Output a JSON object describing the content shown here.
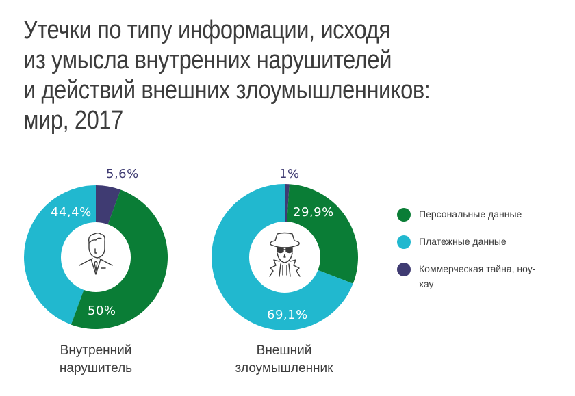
{
  "title": {
    "lines": [
      "Утечки по типу информации, исходя",
      "из умысла внутренних нарушителей",
      "и действий внешних злоумышленников:",
      "мир, 2017"
    ]
  },
  "colors": {
    "personal": "#0a7d36",
    "payment": "#21b8cf",
    "commercial": "#3f3b72",
    "text": "#3c3c3c"
  },
  "charts": [
    {
      "caption_lines": [
        "Внутренний",
        "нарушитель"
      ],
      "icon": "businessman-icon",
      "labels": {
        "commercial": "5,6%",
        "personal": "50%",
        "payment": "44,4%"
      }
    },
    {
      "caption_lines": [
        "Внешний",
        "злоумышленник"
      ],
      "icon": "spy-icon",
      "labels": {
        "commercial": "1%",
        "personal": "29,9%",
        "payment": "69,1%"
      }
    }
  ],
  "legend": {
    "items": [
      {
        "label": "Персональные данные",
        "color": "#0a7d36"
      },
      {
        "label": "Платежные данные",
        "color": "#21b8cf"
      },
      {
        "label": "Коммерческая тайна, ноу-хау",
        "color": "#3f3b72"
      }
    ]
  },
  "chart_data": [
    {
      "type": "pie",
      "variant": "donut",
      "title": "Утечки по типу информации, исходя из умысла внутренних нарушителей и действий внешних злоумышленников: мир, 2017",
      "subtitle": "Внутренний нарушитель",
      "categories": [
        "Коммерческая тайна, ноу-хау",
        "Персональные данные",
        "Платежные данные"
      ],
      "values": [
        5.6,
        50,
        44.4
      ],
      "unit": "%",
      "start_angle": "12 o'clock, clockwise",
      "legend_position": "right"
    },
    {
      "type": "pie",
      "variant": "donut",
      "title": "Утечки по типу информации, исходя из умысла внутренних нарушителей и действий внешних злоумышленников: мир, 2017",
      "subtitle": "Внешний злоумышленник",
      "categories": [
        "Коммерческая тайна, ноу-хау",
        "Персональные данные",
        "Платежные данные"
      ],
      "values": [
        1,
        29.9,
        69.1
      ],
      "unit": "%",
      "start_angle": "12 o'clock, clockwise",
      "legend_position": "right"
    }
  ]
}
